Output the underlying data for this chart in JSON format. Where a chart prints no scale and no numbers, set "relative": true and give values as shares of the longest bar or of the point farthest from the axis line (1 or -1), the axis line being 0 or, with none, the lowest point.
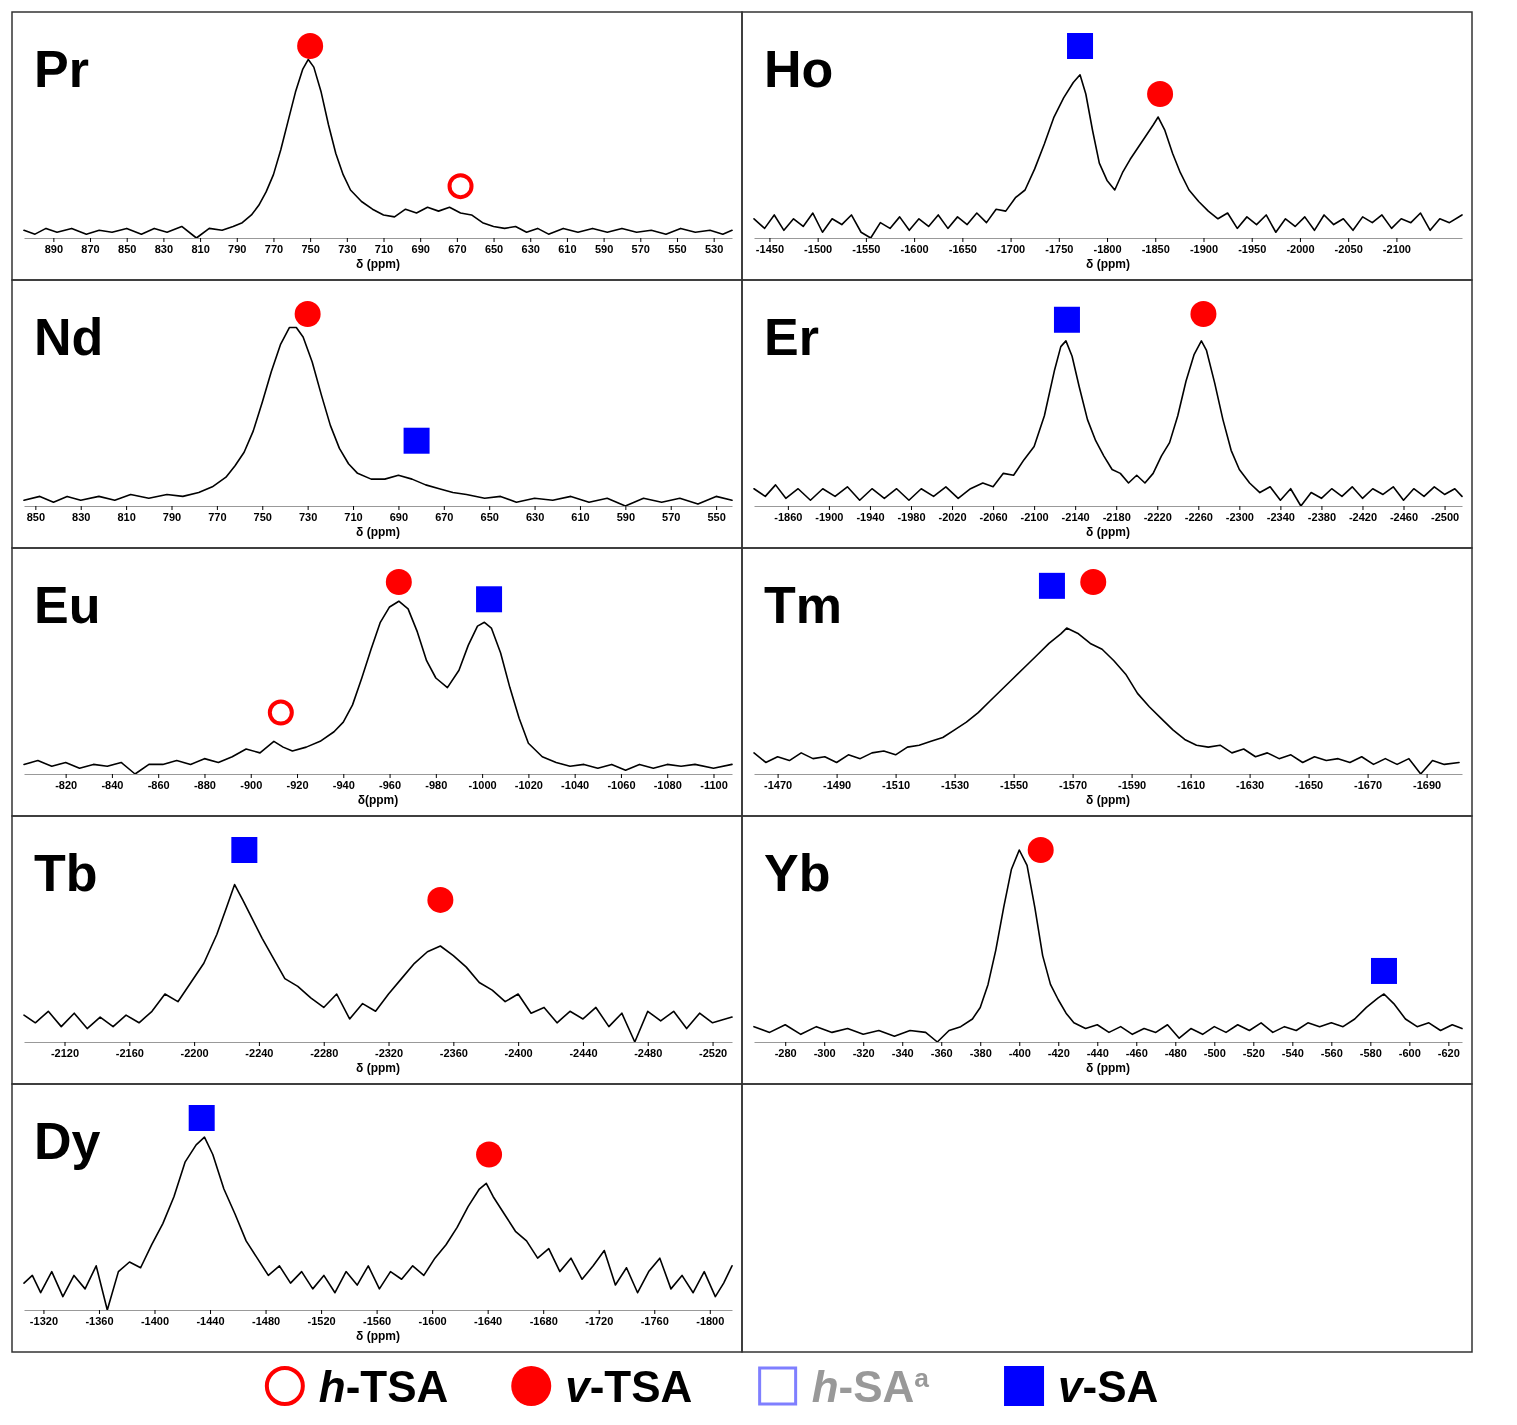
{
  "chart_data": [
    {
      "type": "line",
      "title": "Pr",
      "xlabel": "δ (ppm)",
      "relative": true,
      "legend": "bottom",
      "xlim": [
        906,
        520
      ],
      "xticks": [
        890,
        870,
        850,
        830,
        810,
        790,
        770,
        750,
        730,
        710,
        690,
        670,
        650,
        630,
        610,
        590,
        570,
        550,
        530
      ],
      "series": [
        {
          "type": "line",
          "color": "#000000",
          "x": [
            906,
            900,
            894,
            888,
            880,
            872,
            865,
            858,
            850,
            842,
            835,
            828,
            820,
            812,
            805,
            798,
            792,
            787,
            782,
            778,
            774,
            770,
            766,
            762,
            758,
            754,
            751,
            748,
            744,
            740,
            736,
            732,
            728,
            722,
            716,
            710,
            704,
            698,
            692,
            686,
            680,
            674,
            668,
            662,
            656,
            650,
            644,
            638,
            632,
            626,
            620,
            612,
            604,
            596,
            588,
            580,
            572,
            564,
            556,
            548,
            540,
            532,
            525,
            520
          ],
          "values": [
            0.04,
            0.02,
            0.05,
            0.03,
            0.05,
            0.02,
            0.04,
            0.03,
            0.05,
            0.02,
            0.05,
            0.03,
            0.06,
            0.0,
            0.05,
            0.04,
            0.06,
            0.08,
            0.12,
            0.17,
            0.24,
            0.33,
            0.46,
            0.61,
            0.76,
            0.88,
            0.93,
            0.89,
            0.76,
            0.59,
            0.44,
            0.33,
            0.25,
            0.19,
            0.15,
            0.12,
            0.11,
            0.15,
            0.13,
            0.16,
            0.14,
            0.16,
            0.13,
            0.12,
            0.08,
            0.06,
            0.05,
            0.06,
            0.03,
            0.05,
            0.02,
            0.05,
            0.03,
            0.05,
            0.03,
            0.05,
            0.03,
            0.04,
            0.02,
            0.05,
            0.03,
            0.04,
            0.02,
            0.04
          ]
        },
        {
          "type": "scatter",
          "name": "v-TSA",
          "color": "#ff0000",
          "marker": "circle",
          "x": [
            750
          ],
          "values": [
            1.0
          ]
        },
        {
          "type": "scatter",
          "name": "h-TSA",
          "color": "#ff0000",
          "marker": "circle-open",
          "x": [
            668
          ],
          "values": [
            0.27
          ]
        }
      ]
    },
    {
      "type": "line",
      "title": "Ho",
      "xlabel": "δ (ppm)",
      "relative": true,
      "legend": "bottom",
      "xlim": [
        -1434,
        -2168
      ],
      "xticks": [
        -1450,
        -1500,
        -1550,
        -1600,
        -1650,
        -1700,
        -1750,
        -1800,
        -1850,
        -1900,
        -1950,
        -2000,
        -2050,
        -2100
      ],
      "series": [
        {
          "type": "line",
          "color": "#000000",
          "x": [
            -1434,
            -1445,
            -1455,
            -1465,
            -1475,
            -1485,
            -1495,
            -1505,
            -1515,
            -1525,
            -1535,
            -1545,
            -1555,
            -1565,
            -1575,
            -1585,
            -1595,
            -1605,
            -1615,
            -1625,
            -1635,
            -1645,
            -1655,
            -1665,
            -1675,
            -1685,
            -1695,
            -1705,
            -1715,
            -1725,
            -1735,
            -1745,
            -1755,
            -1765,
            -1772,
            -1778,
            -1785,
            -1792,
            -1800,
            -1808,
            -1816,
            -1824,
            -1832,
            -1840,
            -1848,
            -1853,
            -1860,
            -1868,
            -1876,
            -1885,
            -1895,
            -1905,
            -1915,
            -1925,
            -1935,
            -1945,
            -1955,
            -1965,
            -1975,
            -1985,
            -1995,
            -2005,
            -2015,
            -2025,
            -2035,
            -2045,
            -2055,
            -2065,
            -2075,
            -2085,
            -2095,
            -2105,
            -2115,
            -2125,
            -2135,
            -2145,
            -2155,
            -2168
          ],
          "values": [
            0.1,
            0.05,
            0.12,
            0.04,
            0.1,
            0.06,
            0.13,
            0.03,
            0.1,
            0.07,
            0.12,
            0.03,
            0.0,
            0.08,
            0.05,
            0.11,
            0.04,
            0.1,
            0.06,
            0.12,
            0.05,
            0.11,
            0.07,
            0.13,
            0.08,
            0.15,
            0.14,
            0.21,
            0.25,
            0.36,
            0.49,
            0.63,
            0.73,
            0.81,
            0.85,
            0.75,
            0.56,
            0.39,
            0.3,
            0.25,
            0.34,
            0.41,
            0.47,
            0.53,
            0.59,
            0.63,
            0.56,
            0.44,
            0.34,
            0.25,
            0.19,
            0.14,
            0.1,
            0.13,
            0.05,
            0.11,
            0.07,
            0.12,
            0.03,
            0.1,
            0.06,
            0.11,
            0.04,
            0.12,
            0.07,
            0.1,
            0.04,
            0.11,
            0.08,
            0.12,
            0.05,
            0.1,
            0.08,
            0.13,
            0.04,
            0.1,
            0.08,
            0.12
          ]
        },
        {
          "type": "scatter",
          "name": "v-SA",
          "color": "#0000ff",
          "marker": "square",
          "x": [
            -1772
          ],
          "values": [
            1.0
          ]
        },
        {
          "type": "scatter",
          "name": "v-TSA",
          "color": "#ff0000",
          "marker": "circle",
          "x": [
            -1855
          ],
          "values": [
            0.75
          ]
        }
      ]
    },
    {
      "type": "line",
      "title": "Nd",
      "xlabel": "δ (ppm)",
      "relative": true,
      "legend": "bottom",
      "xlim": [
        855,
        543
      ],
      "xticks": [
        850,
        830,
        810,
        790,
        770,
        750,
        730,
        710,
        690,
        670,
        650,
        630,
        610,
        590,
        570,
        550
      ],
      "series": [
        {
          "type": "line",
          "color": "#000000",
          "x": [
            855,
            848,
            842,
            836,
            830,
            822,
            815,
            808,
            800,
            792,
            785,
            778,
            772,
            766,
            762,
            758,
            754,
            750,
            746,
            742,
            738,
            735,
            732,
            728,
            724,
            720,
            716,
            712,
            708,
            702,
            696,
            690,
            684,
            678,
            672,
            666,
            660,
            652,
            645,
            638,
            630,
            622,
            614,
            606,
            598,
            590,
            582,
            574,
            566,
            558,
            550,
            543
          ],
          "values": [
            0.03,
            0.05,
            0.02,
            0.05,
            0.03,
            0.05,
            0.03,
            0.06,
            0.04,
            0.06,
            0.05,
            0.07,
            0.1,
            0.15,
            0.21,
            0.28,
            0.39,
            0.54,
            0.7,
            0.84,
            0.93,
            0.93,
            0.88,
            0.75,
            0.58,
            0.42,
            0.3,
            0.22,
            0.17,
            0.14,
            0.14,
            0.16,
            0.14,
            0.11,
            0.09,
            0.07,
            0.06,
            0.04,
            0.05,
            0.02,
            0.04,
            0.03,
            0.05,
            0.02,
            0.04,
            0.0,
            0.04,
            0.02,
            0.04,
            0.01,
            0.05,
            0.03
          ]
        },
        {
          "type": "scatter",
          "name": "v-TSA",
          "color": "#ff0000",
          "marker": "circle",
          "x": [
            730
          ],
          "values": [
            1.0
          ]
        },
        {
          "type": "scatter",
          "name": "v-SA",
          "color": "#0000ff",
          "marker": "square",
          "x": [
            682
          ],
          "values": [
            0.34
          ]
        }
      ]
    },
    {
      "type": "line",
      "title": "Er",
      "xlabel": "δ (ppm)",
      "relative": true,
      "legend": "bottom",
      "xlim": [
        -1827,
        -2517
      ],
      "xticks": [
        -1860,
        -1900,
        -1940,
        -1980,
        -2020,
        -2060,
        -2100,
        -2140,
        -2180,
        -2220,
        -2260,
        -2300,
        -2340,
        -2380,
        -2420,
        -2460,
        -2500
      ],
      "series": [
        {
          "type": "line",
          "color": "#000000",
          "x": [
            -1827,
            -1838,
            -1848,
            -1858,
            -1870,
            -1882,
            -1894,
            -1906,
            -1918,
            -1930,
            -1942,
            -1954,
            -1966,
            -1978,
            -1990,
            -2002,
            -2014,
            -2026,
            -2038,
            -2050,
            -2060,
            -2070,
            -2080,
            -2090,
            -2100,
            -2110,
            -2120,
            -2126,
            -2131,
            -2137,
            -2144,
            -2152,
            -2160,
            -2168,
            -2176,
            -2184,
            -2192,
            -2200,
            -2208,
            -2216,
            -2224,
            -2232,
            -2240,
            -2248,
            -2256,
            -2263,
            -2268,
            -2276,
            -2284,
            -2292,
            -2300,
            -2310,
            -2320,
            -2330,
            -2340,
            -2350,
            -2360,
            -2370,
            -2380,
            -2390,
            -2400,
            -2410,
            -2420,
            -2430,
            -2440,
            -2450,
            -2460,
            -2470,
            -2480,
            -2490,
            -2500,
            -2510,
            -2517
          ],
          "values": [
            0.09,
            0.05,
            0.11,
            0.04,
            0.09,
            0.03,
            0.09,
            0.05,
            0.1,
            0.03,
            0.09,
            0.04,
            0.09,
            0.03,
            0.09,
            0.05,
            0.1,
            0.04,
            0.09,
            0.12,
            0.1,
            0.17,
            0.16,
            0.24,
            0.31,
            0.47,
            0.71,
            0.83,
            0.86,
            0.78,
            0.62,
            0.45,
            0.34,
            0.26,
            0.19,
            0.17,
            0.12,
            0.16,
            0.12,
            0.17,
            0.26,
            0.33,
            0.47,
            0.65,
            0.79,
            0.86,
            0.81,
            0.64,
            0.45,
            0.29,
            0.19,
            0.12,
            0.07,
            0.1,
            0.03,
            0.09,
            0.0,
            0.07,
            0.04,
            0.09,
            0.05,
            0.1,
            0.04,
            0.09,
            0.06,
            0.1,
            0.03,
            0.09,
            0.05,
            0.1,
            0.06,
            0.09,
            0.05
          ]
        },
        {
          "type": "scatter",
          "name": "v-SA",
          "color": "#0000ff",
          "marker": "square",
          "x": [
            -2132
          ],
          "values": [
            0.97
          ]
        },
        {
          "type": "scatter",
          "name": "v-TSA",
          "color": "#ff0000",
          "marker": "circle",
          "x": [
            -2265
          ],
          "values": [
            1.0
          ]
        }
      ]
    },
    {
      "type": "line",
      "title": "Eu",
      "xlabel": "δ(ppm)",
      "relative": true,
      "legend": "bottom",
      "xlim": [
        -802,
        -1108
      ],
      "xticks": [
        -820,
        -840,
        -860,
        -880,
        -900,
        -920,
        -940,
        -960,
        -980,
        -1000,
        -1020,
        -1040,
        -1060,
        -1080,
        -1100
      ],
      "series": [
        {
          "type": "line",
          "color": "#000000",
          "x": [
            -802,
            -808,
            -814,
            -820,
            -826,
            -832,
            -838,
            -844,
            -850,
            -856,
            -862,
            -868,
            -874,
            -880,
            -886,
            -892,
            -898,
            -904,
            -910,
            -914,
            -918,
            -924,
            -930,
            -936,
            -940,
            -944,
            -948,
            -952,
            -956,
            -960,
            -964,
            -968,
            -972,
            -976,
            -980,
            -985,
            -990,
            -994,
            -998,
            -1001,
            -1004,
            -1008,
            -1012,
            -1016,
            -1020,
            -1026,
            -1032,
            -1038,
            -1044,
            -1050,
            -1056,
            -1062,
            -1068,
            -1074,
            -1080,
            -1086,
            -1092,
            -1100,
            -1108
          ],
          "values": [
            0.05,
            0.07,
            0.04,
            0.06,
            0.03,
            0.05,
            0.04,
            0.06,
            0.0,
            0.05,
            0.05,
            0.07,
            0.05,
            0.08,
            0.06,
            0.09,
            0.13,
            0.11,
            0.17,
            0.14,
            0.12,
            0.14,
            0.17,
            0.22,
            0.27,
            0.36,
            0.5,
            0.65,
            0.79,
            0.87,
            0.9,
            0.86,
            0.74,
            0.59,
            0.5,
            0.45,
            0.54,
            0.67,
            0.77,
            0.79,
            0.76,
            0.63,
            0.45,
            0.29,
            0.16,
            0.09,
            0.06,
            0.04,
            0.05,
            0.03,
            0.05,
            0.02,
            0.05,
            0.03,
            0.05,
            0.04,
            0.05,
            0.03,
            0.05
          ]
        },
        {
          "type": "scatter",
          "name": "v-TSA",
          "color": "#ff0000",
          "marker": "circle",
          "x": [
            -964
          ],
          "values": [
            1.0
          ]
        },
        {
          "type": "scatter",
          "name": "v-SA",
          "color": "#0000ff",
          "marker": "square",
          "x": [
            -1003
          ],
          "values": [
            0.91
          ]
        },
        {
          "type": "scatter",
          "name": "h-TSA",
          "color": "#ff0000",
          "marker": "circle-open",
          "x": [
            -913
          ],
          "values": [
            0.32
          ]
        }
      ]
    },
    {
      "type": "line",
      "title": "Tm",
      "xlabel": "δ (ppm)",
      "relative": true,
      "legend": "bottom",
      "xlim": [
        -1462,
        -1702
      ],
      "xticks": [
        -1470,
        -1490,
        -1510,
        -1530,
        -1550,
        -1570,
        -1590,
        -1610,
        -1630,
        -1650,
        -1670,
        -1690
      ],
      "series": [
        {
          "type": "line",
          "color": "#000000",
          "x": [
            -1462,
            -1466,
            -1470,
            -1474,
            -1478,
            -1482,
            -1486,
            -1490,
            -1494,
            -1498,
            -1502,
            -1506,
            -1510,
            -1514,
            -1518,
            -1522,
            -1526,
            -1530,
            -1534,
            -1538,
            -1542,
            -1546,
            -1550,
            -1554,
            -1558,
            -1562,
            -1566,
            -1568,
            -1572,
            -1576,
            -1580,
            -1584,
            -1588,
            -1592,
            -1596,
            -1600,
            -1604,
            -1608,
            -1612,
            -1616,
            -1620,
            -1624,
            -1628,
            -1632,
            -1636,
            -1640,
            -1644,
            -1648,
            -1652,
            -1656,
            -1660,
            -1664,
            -1668,
            -1672,
            -1676,
            -1680,
            -1684,
            -1688,
            -1692,
            -1696,
            -1701
          ],
          "values": [
            0.11,
            0.06,
            0.09,
            0.07,
            0.11,
            0.08,
            0.09,
            0.06,
            0.1,
            0.08,
            0.11,
            0.12,
            0.1,
            0.14,
            0.15,
            0.17,
            0.19,
            0.23,
            0.27,
            0.32,
            0.38,
            0.44,
            0.5,
            0.56,
            0.62,
            0.68,
            0.73,
            0.76,
            0.73,
            0.68,
            0.65,
            0.59,
            0.52,
            0.42,
            0.35,
            0.29,
            0.23,
            0.18,
            0.15,
            0.14,
            0.15,
            0.11,
            0.13,
            0.09,
            0.11,
            0.08,
            0.1,
            0.06,
            0.09,
            0.07,
            0.08,
            0.06,
            0.09,
            0.05,
            0.08,
            0.05,
            0.08,
            0.0,
            0.07,
            0.05,
            0.06
          ]
        },
        {
          "type": "scatter",
          "name": "v-SA",
          "color": "#0000ff",
          "marker": "square",
          "x": [
            -1563
          ],
          "values": [
            0.98
          ]
        },
        {
          "type": "scatter",
          "name": "v-TSA",
          "color": "#ff0000",
          "marker": "circle",
          "x": [
            -1577
          ],
          "values": [
            1.0
          ]
        }
      ]
    },
    {
      "type": "line",
      "title": "Tb",
      "xlabel": "δ (ppm)",
      "relative": true,
      "legend": "bottom",
      "xlim": [
        -2095,
        -2532
      ],
      "xticks": [
        -2120,
        -2160,
        -2200,
        -2240,
        -2280,
        -2320,
        -2360,
        -2400,
        -2440,
        -2480,
        -2520
      ],
      "series": [
        {
          "type": "line",
          "color": "#000000",
          "x": [
            -2095,
            -2102,
            -2110,
            -2118,
            -2126,
            -2134,
            -2142,
            -2150,
            -2158,
            -2166,
            -2174,
            -2182,
            -2190,
            -2198,
            -2206,
            -2214,
            -2220,
            -2225,
            -2230,
            -2236,
            -2242,
            -2248,
            -2256,
            -2264,
            -2272,
            -2280,
            -2288,
            -2296,
            -2304,
            -2312,
            -2320,
            -2328,
            -2336,
            -2344,
            -2352,
            -2360,
            -2368,
            -2376,
            -2384,
            -2392,
            -2400,
            -2408,
            -2416,
            -2424,
            -2432,
            -2440,
            -2448,
            -2456,
            -2464,
            -2472,
            -2480,
            -2488,
            -2496,
            -2504,
            -2512,
            -2520,
            -2532
          ],
          "values": [
            0.14,
            0.1,
            0.16,
            0.08,
            0.15,
            0.07,
            0.13,
            0.08,
            0.14,
            0.1,
            0.16,
            0.25,
            0.21,
            0.31,
            0.41,
            0.56,
            0.7,
            0.82,
            0.74,
            0.64,
            0.54,
            0.45,
            0.33,
            0.29,
            0.23,
            0.18,
            0.25,
            0.12,
            0.2,
            0.16,
            0.25,
            0.33,
            0.41,
            0.47,
            0.5,
            0.45,
            0.39,
            0.31,
            0.27,
            0.21,
            0.25,
            0.15,
            0.18,
            0.1,
            0.16,
            0.12,
            0.18,
            0.08,
            0.15,
            0.0,
            0.16,
            0.11,
            0.16,
            0.07,
            0.15,
            0.1,
            0.13
          ]
        },
        {
          "type": "scatter",
          "name": "v-SA",
          "color": "#0000ff",
          "marker": "square",
          "x": [
            -2231
          ],
          "values": [
            1.0
          ]
        },
        {
          "type": "scatter",
          "name": "v-TSA",
          "color": "#ff0000",
          "marker": "circle",
          "x": [
            -2352
          ],
          "values": [
            0.74
          ]
        }
      ]
    },
    {
      "type": "line",
      "title": "Yb",
      "xlabel": "δ (ppm)",
      "relative": true,
      "legend": "bottom",
      "xlim": [
        -264,
        -627
      ],
      "xticks": [
        -280,
        -300,
        -320,
        -340,
        -360,
        -380,
        -400,
        -420,
        -440,
        -460,
        -480,
        -500,
        -520,
        -540,
        -560,
        -580,
        -600,
        -620
      ],
      "series": [
        {
          "type": "line",
          "color": "#000000",
          "x": [
            -264,
            -272,
            -280,
            -288,
            -296,
            -304,
            -312,
            -320,
            -328,
            -336,
            -344,
            -352,
            -358,
            -364,
            -370,
            -376,
            -380,
            -384,
            -388,
            -392,
            -396,
            -400,
            -404,
            -408,
            -412,
            -416,
            -420,
            -424,
            -428,
            -434,
            -440,
            -446,
            -452,
            -458,
            -464,
            -470,
            -476,
            -482,
            -488,
            -494,
            -500,
            -506,
            -512,
            -518,
            -524,
            -530,
            -536,
            -542,
            -548,
            -554,
            -560,
            -566,
            -572,
            -578,
            -584,
            -587,
            -592,
            -598,
            -604,
            -610,
            -616,
            -622,
            -627
          ],
          "values": [
            0.08,
            0.05,
            0.09,
            0.04,
            0.08,
            0.05,
            0.07,
            0.04,
            0.06,
            0.03,
            0.06,
            0.05,
            0.0,
            0.06,
            0.08,
            0.12,
            0.18,
            0.3,
            0.48,
            0.7,
            0.9,
            1.0,
            0.92,
            0.7,
            0.45,
            0.3,
            0.22,
            0.15,
            0.1,
            0.07,
            0.09,
            0.05,
            0.08,
            0.04,
            0.07,
            0.05,
            0.09,
            0.02,
            0.07,
            0.04,
            0.08,
            0.05,
            0.09,
            0.06,
            0.1,
            0.05,
            0.08,
            0.06,
            0.1,
            0.08,
            0.1,
            0.08,
            0.12,
            0.18,
            0.23,
            0.25,
            0.2,
            0.12,
            0.08,
            0.1,
            0.06,
            0.09,
            0.07
          ]
        },
        {
          "type": "scatter",
          "name": "v-TSA",
          "color": "#ff0000",
          "marker": "circle",
          "x": [
            -411
          ],
          "values": [
            1.0
          ]
        },
        {
          "type": "scatter",
          "name": "v-SA",
          "color": "#0000ff",
          "marker": "square",
          "x": [
            -587
          ],
          "values": [
            0.37
          ]
        }
      ]
    },
    {
      "type": "line",
      "title": "Dy",
      "xlabel": "δ (ppm)",
      "relative": true,
      "legend": "bottom",
      "xlim": [
        -1306,
        -1816
      ],
      "xticks": [
        -1320,
        -1360,
        -1400,
        -1440,
        -1480,
        -1520,
        -1560,
        -1600,
        -1640,
        -1680,
        -1720,
        -1760,
        -1800
      ],
      "series": [
        {
          "type": "line",
          "color": "#000000",
          "x": [
            -1306,
            -1312,
            -1318,
            -1326,
            -1334,
            -1342,
            -1350,
            -1358,
            -1366,
            -1374,
            -1382,
            -1390,
            -1398,
            -1406,
            -1414,
            -1422,
            -1430,
            -1436,
            -1442,
            -1450,
            -1458,
            -1466,
            -1474,
            -1482,
            -1490,
            -1498,
            -1506,
            -1514,
            -1522,
            -1530,
            -1538,
            -1546,
            -1554,
            -1562,
            -1570,
            -1578,
            -1586,
            -1594,
            -1602,
            -1610,
            -1618,
            -1626,
            -1634,
            -1639,
            -1644,
            -1652,
            -1660,
            -1668,
            -1676,
            -1684,
            -1692,
            -1700,
            -1708,
            -1716,
            -1724,
            -1732,
            -1740,
            -1748,
            -1756,
            -1764,
            -1772,
            -1780,
            -1788,
            -1796,
            -1804,
            -1810,
            -1816
          ],
          "values": [
            0.14,
            0.18,
            0.09,
            0.2,
            0.07,
            0.18,
            0.11,
            0.23,
            0.0,
            0.2,
            0.25,
            0.22,
            0.34,
            0.45,
            0.59,
            0.77,
            0.86,
            0.9,
            0.81,
            0.63,
            0.5,
            0.36,
            0.27,
            0.18,
            0.23,
            0.14,
            0.2,
            0.11,
            0.18,
            0.09,
            0.2,
            0.13,
            0.23,
            0.11,
            0.2,
            0.16,
            0.23,
            0.18,
            0.27,
            0.34,
            0.43,
            0.54,
            0.63,
            0.66,
            0.59,
            0.5,
            0.41,
            0.36,
            0.27,
            0.32,
            0.2,
            0.27,
            0.16,
            0.23,
            0.31,
            0.13,
            0.22,
            0.09,
            0.2,
            0.27,
            0.11,
            0.18,
            0.09,
            0.2,
            0.07,
            0.14,
            0.23
          ]
        },
        {
          "type": "scatter",
          "name": "h-TSA",
          "color": "#ff0000",
          "marker": "circle-open"
        },
        {
          "type": "scatter",
          "name": "v-TSA",
          "color": "#ff0000",
          "marker": "circle",
          "x": [
            -1641
          ],
          "values": [
            0.81
          ]
        },
        {
          "type": "scatter",
          "name": "h-SA$^{a}$",
          "color": "#7f7fff",
          "marker": "square-open"
        },
        {
          "type": "scatter",
          "name": "v-SA",
          "color": "#0000ff",
          "marker": "square",
          "x": [
            -1434
          ],
          "values": [
            1.0
          ]
        }
      ]
    }
  ]
}
